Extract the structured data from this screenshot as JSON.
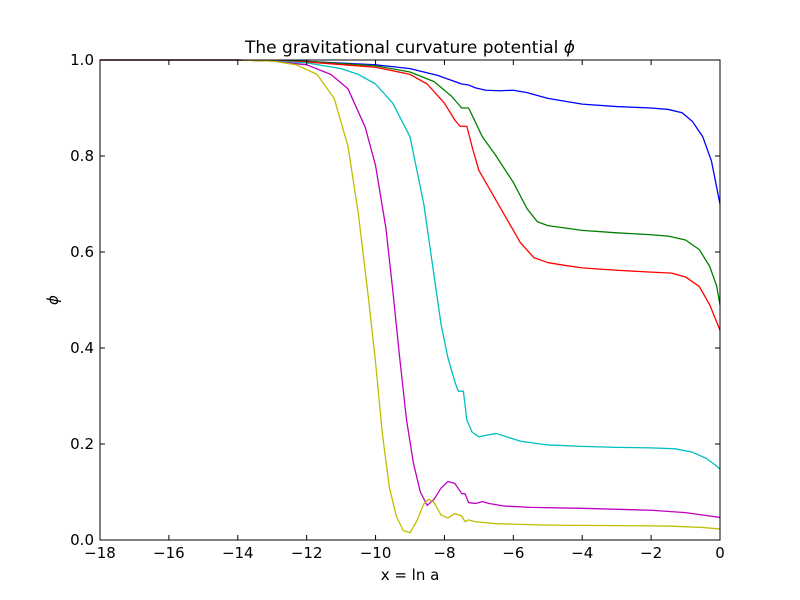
{
  "chart_data": {
    "type": "line",
    "title": "The gravitational curvature potential ",
    "title_symbol": "ϕ",
    "xlabel": "x = ln a",
    "ylabel": "ϕ",
    "xlim": [
      -18,
      0
    ],
    "ylim": [
      0.0,
      1.0
    ],
    "xticks": [
      -18,
      -16,
      -14,
      -12,
      -10,
      -8,
      -6,
      -4,
      -2,
      0
    ],
    "xtick_labels": [
      "−18",
      "−16",
      "−14",
      "−12",
      "−10",
      "−8",
      "−6",
      "−4",
      "−2",
      "0"
    ],
    "yticks": [
      0.0,
      0.2,
      0.4,
      0.6,
      0.8,
      1.0
    ],
    "ytick_labels": [
      "0.0",
      "0.2",
      "0.4",
      "0.6",
      "0.8",
      "1.0"
    ],
    "grid": false,
    "legend": "none",
    "series": [
      {
        "color": "#0000ff",
        "points": [
          [
            -18,
            1.0
          ],
          [
            -14,
            1.0
          ],
          [
            -12,
            0.997
          ],
          [
            -10,
            0.99
          ],
          [
            -9,
            0.982
          ],
          [
            -8.2,
            0.968
          ],
          [
            -7.5,
            0.95
          ],
          [
            -7.3,
            0.948
          ],
          [
            -7.1,
            0.942
          ],
          [
            -6.8,
            0.937
          ],
          [
            -6.4,
            0.936
          ],
          [
            -6,
            0.937
          ],
          [
            -5.6,
            0.932
          ],
          [
            -5,
            0.92
          ],
          [
            -4,
            0.908
          ],
          [
            -3,
            0.903
          ],
          [
            -2,
            0.9
          ],
          [
            -1.5,
            0.897
          ],
          [
            -1.1,
            0.89
          ],
          [
            -0.8,
            0.872
          ],
          [
            -0.5,
            0.84
          ],
          [
            -0.25,
            0.79
          ],
          [
            0,
            0.7
          ]
        ]
      },
      {
        "color": "#008000",
        "points": [
          [
            -18,
            1.0
          ],
          [
            -14,
            1.0
          ],
          [
            -12,
            0.997
          ],
          [
            -10,
            0.988
          ],
          [
            -9,
            0.975
          ],
          [
            -8.3,
            0.955
          ],
          [
            -7.8,
            0.925
          ],
          [
            -7.5,
            0.9
          ],
          [
            -7.3,
            0.9
          ],
          [
            -7.15,
            0.878
          ],
          [
            -6.9,
            0.84
          ],
          [
            -6.5,
            0.8
          ],
          [
            -6,
            0.745
          ],
          [
            -5.6,
            0.69
          ],
          [
            -5.3,
            0.663
          ],
          [
            -5,
            0.655
          ],
          [
            -4,
            0.645
          ],
          [
            -3,
            0.64
          ],
          [
            -2,
            0.636
          ],
          [
            -1.5,
            0.633
          ],
          [
            -1,
            0.625
          ],
          [
            -0.6,
            0.605
          ],
          [
            -0.3,
            0.57
          ],
          [
            -0.1,
            0.53
          ],
          [
            0,
            0.49
          ]
        ]
      },
      {
        "color": "#ff0000",
        "points": [
          [
            -18,
            1.0
          ],
          [
            -14,
            1.0
          ],
          [
            -12,
            0.996
          ],
          [
            -10,
            0.985
          ],
          [
            -9,
            0.97
          ],
          [
            -8.5,
            0.95
          ],
          [
            -8,
            0.91
          ],
          [
            -7.7,
            0.875
          ],
          [
            -7.55,
            0.862
          ],
          [
            -7.35,
            0.862
          ],
          [
            -7.2,
            0.82
          ],
          [
            -7,
            0.77
          ],
          [
            -6.6,
            0.72
          ],
          [
            -6.2,
            0.67
          ],
          [
            -5.8,
            0.62
          ],
          [
            -5.4,
            0.588
          ],
          [
            -5,
            0.578
          ],
          [
            -4.5,
            0.572
          ],
          [
            -4,
            0.567
          ],
          [
            -3,
            0.562
          ],
          [
            -2,
            0.558
          ],
          [
            -1.4,
            0.556
          ],
          [
            -1,
            0.548
          ],
          [
            -0.6,
            0.528
          ],
          [
            -0.3,
            0.49
          ],
          [
            -0.1,
            0.455
          ],
          [
            0,
            0.437
          ]
        ]
      },
      {
        "color": "#00bfbf",
        "points": [
          [
            -18,
            1.0
          ],
          [
            -14,
            1.0
          ],
          [
            -13,
            0.998
          ],
          [
            -12,
            0.994
          ],
          [
            -11,
            0.982
          ],
          [
            -10.5,
            0.97
          ],
          [
            -10,
            0.95
          ],
          [
            -9.5,
            0.91
          ],
          [
            -9,
            0.84
          ],
          [
            -8.6,
            0.7
          ],
          [
            -8.3,
            0.55
          ],
          [
            -8.1,
            0.45
          ],
          [
            -7.9,
            0.38
          ],
          [
            -7.7,
            0.33
          ],
          [
            -7.6,
            0.31
          ],
          [
            -7.45,
            0.31
          ],
          [
            -7.35,
            0.25
          ],
          [
            -7.2,
            0.225
          ],
          [
            -7,
            0.215
          ],
          [
            -6.8,
            0.218
          ],
          [
            -6.5,
            0.222
          ],
          [
            -6.2,
            0.215
          ],
          [
            -5.8,
            0.206
          ],
          [
            -5,
            0.198
          ],
          [
            -4,
            0.195
          ],
          [
            -3,
            0.193
          ],
          [
            -2,
            0.192
          ],
          [
            -1.3,
            0.19
          ],
          [
            -0.8,
            0.183
          ],
          [
            -0.4,
            0.17
          ],
          [
            -0.15,
            0.157
          ],
          [
            0,
            0.148
          ]
        ]
      },
      {
        "color": "#bf00bf",
        "points": [
          [
            -18,
            1.0
          ],
          [
            -14,
            1.0
          ],
          [
            -13,
            0.998
          ],
          [
            -12,
            0.99
          ],
          [
            -11.3,
            0.97
          ],
          [
            -10.8,
            0.94
          ],
          [
            -10.3,
            0.86
          ],
          [
            -10,
            0.78
          ],
          [
            -9.7,
            0.65
          ],
          [
            -9.5,
            0.52
          ],
          [
            -9.3,
            0.38
          ],
          [
            -9.1,
            0.25
          ],
          [
            -8.9,
            0.16
          ],
          [
            -8.7,
            0.1
          ],
          [
            -8.5,
            0.072
          ],
          [
            -8.3,
            0.085
          ],
          [
            -8.1,
            0.108
          ],
          [
            -7.9,
            0.122
          ],
          [
            -7.7,
            0.118
          ],
          [
            -7.5,
            0.097
          ],
          [
            -7.4,
            0.096
          ],
          [
            -7.3,
            0.078
          ],
          [
            -7.1,
            0.076
          ],
          [
            -6.9,
            0.08
          ],
          [
            -6.7,
            0.076
          ],
          [
            -6.3,
            0.071
          ],
          [
            -5.5,
            0.068
          ],
          [
            -4,
            0.066
          ],
          [
            -2,
            0.062
          ],
          [
            -1,
            0.057
          ],
          [
            -0.4,
            0.051
          ],
          [
            0,
            0.047
          ]
        ]
      },
      {
        "color": "#bfbf00",
        "points": [
          [
            -18,
            1.0
          ],
          [
            -14,
            1.0
          ],
          [
            -13,
            0.998
          ],
          [
            -12.3,
            0.99
          ],
          [
            -11.7,
            0.97
          ],
          [
            -11.2,
            0.92
          ],
          [
            -10.8,
            0.82
          ],
          [
            -10.5,
            0.68
          ],
          [
            -10.2,
            0.5
          ],
          [
            -10,
            0.37
          ],
          [
            -9.8,
            0.22
          ],
          [
            -9.6,
            0.11
          ],
          [
            -9.4,
            0.05
          ],
          [
            -9.2,
            0.02
          ],
          [
            -9,
            0.015
          ],
          [
            -8.8,
            0.04
          ],
          [
            -8.6,
            0.075
          ],
          [
            -8.45,
            0.085
          ],
          [
            -8.3,
            0.078
          ],
          [
            -8.1,
            0.052
          ],
          [
            -7.9,
            0.046
          ],
          [
            -7.7,
            0.055
          ],
          [
            -7.5,
            0.05
          ],
          [
            -7.4,
            0.038
          ],
          [
            -7.3,
            0.042
          ],
          [
            -7.1,
            0.038
          ],
          [
            -6.5,
            0.034
          ],
          [
            -5,
            0.031
          ],
          [
            -3,
            0.03
          ],
          [
            -1.5,
            0.029
          ],
          [
            -0.5,
            0.026
          ],
          [
            0,
            0.023
          ]
        ]
      }
    ]
  }
}
